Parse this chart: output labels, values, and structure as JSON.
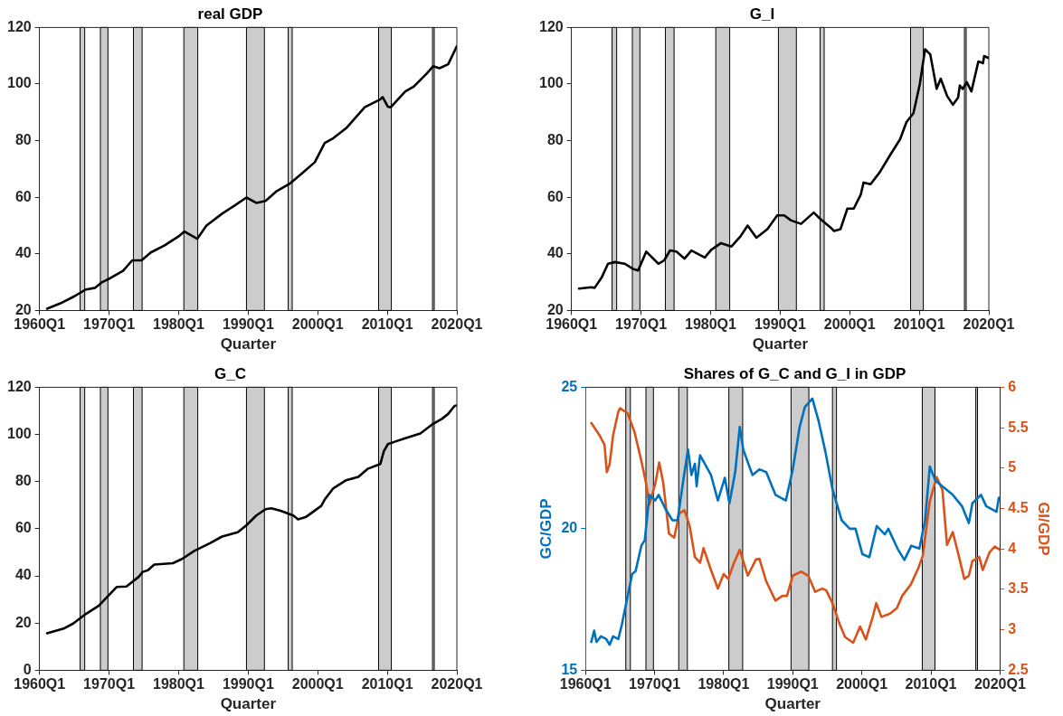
{
  "chart_data": [
    {
      "type": "line",
      "title": "real GDP",
      "xlabel": "Quarter",
      "xlim": [
        "1960-01",
        "2020-01"
      ],
      "xticks": [
        {
          "value": "1960-01",
          "label": "1960Q1"
        },
        {
          "value": "1970-01",
          "label": "1970Q1"
        },
        {
          "value": "1980-01",
          "label": "1980Q1"
        },
        {
          "value": "1990-01",
          "label": "1990Q1"
        },
        {
          "value": "2000-01",
          "label": "2000Q1"
        },
        {
          "value": "2010-01",
          "label": "2010Q1"
        },
        {
          "value": "2020-01",
          "label": "2020Q1"
        }
      ],
      "ylim": [
        20,
        120
      ],
      "yticks": [
        20,
        40,
        60,
        80,
        100,
        120
      ],
      "bands": [
        {
          "axis": "x",
          "from": "1965-11",
          "to": "1966-07",
          "color": "#cccccc"
        },
        {
          "axis": "x",
          "from": "1968-10",
          "to": "1969-11",
          "color": "#cccccc"
        },
        {
          "axis": "x",
          "from": "1973-07",
          "to": "1974-10",
          "color": "#cccccc"
        },
        {
          "axis": "x",
          "from": "1980-10",
          "to": "1982-10",
          "color": "#cccccc"
        },
        {
          "axis": "x",
          "from": "1989-10",
          "to": "1992-05",
          "color": "#cccccc"
        },
        {
          "axis": "x",
          "from": "1995-10",
          "to": "1996-05",
          "color": "#cccccc"
        },
        {
          "axis": "x",
          "from": "2008-10",
          "to": "2010-08",
          "color": "#cccccc"
        },
        {
          "axis": "x",
          "from": "2016-07",
          "to": "2016-10",
          "color": "#cccccc"
        }
      ],
      "series": [
        {
          "color": "#000000",
          "x": [
            "1961-02",
            "1963-01",
            "1965-01",
            "1966-09",
            "1968-01",
            "1969-01",
            "1970-03",
            "1972-01",
            "1973-05",
            "1974-09",
            "1976-01",
            "1978-01",
            "1980-01",
            "1980-11",
            "1982-09",
            "1984-01",
            "1986-04",
            "1988-01",
            "1989-10",
            "1991-03",
            "1992-07",
            "1994-01",
            "1996-02",
            "1998-01",
            "1999-08",
            "2001-01",
            "2002-04",
            "2004-02",
            "2006-10",
            "2009-01",
            "2009-05",
            "2010-02",
            "2010-07",
            "2012-08",
            "2013-11",
            "2015-09",
            "2016-08",
            "2017-07",
            "2018-10",
            "2020-01"
          ],
          "values": [
            20.6,
            22.5,
            25,
            27.4,
            28,
            30,
            31.4,
            34,
            37.7,
            37.7,
            40.5,
            43,
            46.2,
            47.9,
            45.3,
            50,
            54.2,
            57,
            59.9,
            58,
            58.7,
            62,
            65,
            69,
            72.4,
            79.2,
            80.9,
            84.4,
            91.8,
            94.6,
            95.4,
            92,
            91.8,
            97.4,
            99.2,
            103.7,
            106.3,
            105.6,
            107,
            113.4
          ]
        }
      ]
    },
    {
      "type": "line",
      "title": "G_I",
      "xlabel": "Quarter",
      "xlim": [
        "1960-01",
        "2020-01"
      ],
      "xticks": [
        {
          "value": "1960-01",
          "label": "1960Q1"
        },
        {
          "value": "1970-01",
          "label": "1970Q1"
        },
        {
          "value": "1980-01",
          "label": "1980Q1"
        },
        {
          "value": "1990-01",
          "label": "1990Q1"
        },
        {
          "value": "2000-01",
          "label": "2000Q1"
        },
        {
          "value": "2010-01",
          "label": "2010Q1"
        },
        {
          "value": "2020-01",
          "label": "2020Q1"
        }
      ],
      "ylim": [
        20,
        120
      ],
      "yticks": [
        20,
        40,
        60,
        80,
        100,
        120
      ],
      "bands": [
        {
          "axis": "x",
          "from": "1965-11",
          "to": "1966-07",
          "color": "#cccccc"
        },
        {
          "axis": "x",
          "from": "1968-10",
          "to": "1969-11",
          "color": "#cccccc"
        },
        {
          "axis": "x",
          "from": "1973-07",
          "to": "1974-10",
          "color": "#cccccc"
        },
        {
          "axis": "x",
          "from": "1980-10",
          "to": "1982-10",
          "color": "#cccccc"
        },
        {
          "axis": "x",
          "from": "1989-10",
          "to": "1992-05",
          "color": "#cccccc"
        },
        {
          "axis": "x",
          "from": "1995-10",
          "to": "1996-05",
          "color": "#cccccc"
        },
        {
          "axis": "x",
          "from": "2008-10",
          "to": "2010-08",
          "color": "#cccccc"
        },
        {
          "axis": "x",
          "from": "2016-07",
          "to": "2016-10",
          "color": "#cccccc"
        }
      ],
      "series": [
        {
          "color": "#000000",
          "x": [
            "1961-02",
            "1962-11",
            "1963-05",
            "1964-05",
            "1965-04",
            "1966-04",
            "1967-09",
            "1968-11",
            "1969-08",
            "1970-10",
            "1972-07",
            "1973-05",
            "1974-03",
            "1975-02",
            "1976-04",
            "1977-04",
            "1979-03",
            "1980-02",
            "1981-07",
            "1983-01",
            "1984-05",
            "1985-05",
            "1986-08",
            "1988-03",
            "1989-08",
            "1990-08",
            "1991-08",
            "1993-01",
            "1994-11",
            "1995-10",
            "1997-04",
            "1997-10",
            "1998-09",
            "1999-09",
            "2000-08",
            "2001-08",
            "2002-01",
            "2003-01",
            "2004-05",
            "2005-11",
            "2007-04",
            "2008-03",
            "2009-03",
            "2010-02",
            "2010-11",
            "2011-08",
            "2012-07",
            "2013-02",
            "2014-01",
            "2014-11",
            "2015-08",
            "2015-11",
            "2016-04",
            "2016-11",
            "2017-07",
            "2018-07",
            "2019-03",
            "2019-05",
            "2020-01"
          ],
          "values": [
            27.7,
            28.2,
            28,
            31.6,
            36.5,
            37.1,
            36.5,
            34.7,
            34.1,
            40.8,
            36.5,
            37.7,
            41.2,
            40.8,
            38.3,
            41.2,
            38.7,
            41.4,
            43.8,
            42.6,
            46.3,
            50,
            45.7,
            48.7,
            53.6,
            53.6,
            51.8,
            50.6,
            54.6,
            52.4,
            49.3,
            48.1,
            48.7,
            56,
            56,
            60.9,
            65.2,
            64.6,
            68.9,
            75,
            80.5,
            86.6,
            89.7,
            100.1,
            112.3,
            110.5,
            98.3,
            101.9,
            95.8,
            92.7,
            95.2,
            99.5,
            98.3,
            100.7,
            97.4,
            108,
            107.4,
            109.9,
            109.2
          ]
        }
      ]
    },
    {
      "type": "line",
      "title": "G_C",
      "xlabel": "Quarter",
      "xlim": [
        "1960-01",
        "2020-01"
      ],
      "xticks": [
        {
          "value": "1960-01",
          "label": "1960Q1"
        },
        {
          "value": "1970-01",
          "label": "1970Q1"
        },
        {
          "value": "1980-01",
          "label": "1980Q1"
        },
        {
          "value": "1990-01",
          "label": "1990Q1"
        },
        {
          "value": "2000-01",
          "label": "2000Q1"
        },
        {
          "value": "2010-01",
          "label": "2010Q1"
        },
        {
          "value": "2020-01",
          "label": "2020Q1"
        }
      ],
      "ylim": [
        0,
        120
      ],
      "yticks": [
        0,
        20,
        40,
        60,
        80,
        100,
        120
      ],
      "bands": [
        {
          "axis": "x",
          "from": "1965-11",
          "to": "1966-07",
          "color": "#cccccc"
        },
        {
          "axis": "x",
          "from": "1968-10",
          "to": "1969-11",
          "color": "#cccccc"
        },
        {
          "axis": "x",
          "from": "1973-07",
          "to": "1974-10",
          "color": "#cccccc"
        },
        {
          "axis": "x",
          "from": "1980-10",
          "to": "1982-10",
          "color": "#cccccc"
        },
        {
          "axis": "x",
          "from": "1989-10",
          "to": "1992-05",
          "color": "#cccccc"
        },
        {
          "axis": "x",
          "from": "1995-10",
          "to": "1996-05",
          "color": "#cccccc"
        },
        {
          "axis": "x",
          "from": "2008-10",
          "to": "2010-08",
          "color": "#cccccc"
        },
        {
          "axis": "x",
          "from": "2016-07",
          "to": "2016-10",
          "color": "#cccccc"
        }
      ],
      "series": [
        {
          "color": "#000000",
          "x": [
            "1961-02",
            "1963-08",
            "1964-11",
            "1966-09",
            "1968-07",
            "1969-10",
            "1971-02",
            "1972-07",
            "1974-04",
            "1974-11",
            "1975-08",
            "1976-07",
            "1979-03",
            "1980-07",
            "1982-04",
            "1984-07",
            "1986-04",
            "1988-07",
            "1989-10",
            "1991-03",
            "1992-07",
            "1993-05",
            "1994-09",
            "1996-07",
            "1997-03",
            "1998-04",
            "2000-07",
            "2001-01",
            "2002-04",
            "2004-02",
            "2005-11",
            "2007-03",
            "2009-01",
            "2009-07",
            "2010-02",
            "2011-03",
            "2012-08",
            "2014-10",
            "2016-08",
            "2017-11",
            "2018-10",
            "2019-09",
            "2020-01"
          ],
          "values": [
            15.7,
            17.8,
            19.8,
            23.9,
            27.3,
            31.2,
            35.3,
            35.5,
            39.6,
            41.7,
            42.4,
            44.8,
            45.4,
            47.2,
            50.6,
            53.9,
            56.7,
            58.5,
            61.5,
            65.6,
            68.3,
            68.7,
            67.6,
            65.6,
            64,
            64.9,
            69.7,
            72.4,
            77.2,
            80.6,
            82,
            85.4,
            87.5,
            92.9,
            95.9,
            97,
            98.4,
            100.4,
            104.5,
            106.6,
            108.7,
            112.1,
            112.3
          ]
        }
      ]
    },
    {
      "type": "line",
      "title": "Shares of G_C and G_I in GDP",
      "xlabel": "Quarter",
      "ylabel": "GC/GDP",
      "y2label": "GI/GDP",
      "xlim": [
        "1960-01",
        "2020-01"
      ],
      "xticks": [
        {
          "value": "1960-01",
          "label": "1960Q1"
        },
        {
          "value": "1970-01",
          "label": "1970Q1"
        },
        {
          "value": "1980-01",
          "label": "1980Q1"
        },
        {
          "value": "1990-01",
          "label": "1990Q1"
        },
        {
          "value": "2000-01",
          "label": "2000Q1"
        },
        {
          "value": "2010-01",
          "label": "2010Q1"
        },
        {
          "value": "2020-01",
          "label": "2020Q1"
        }
      ],
      "ylim": [
        15,
        25
      ],
      "yticks": [
        15,
        20,
        25
      ],
      "y2lim": [
        2.5,
        6
      ],
      "y2ticks": [
        2.5,
        3,
        3.5,
        4,
        4.5,
        5,
        5.5,
        6
      ],
      "bands": [
        {
          "axis": "x",
          "from": "1965-11",
          "to": "1966-07",
          "color": "#cccccc"
        },
        {
          "axis": "x",
          "from": "1968-10",
          "to": "1969-11",
          "color": "#cccccc"
        },
        {
          "axis": "x",
          "from": "1973-07",
          "to": "1974-10",
          "color": "#cccccc"
        },
        {
          "axis": "x",
          "from": "1980-10",
          "to": "1982-10",
          "color": "#cccccc"
        },
        {
          "axis": "x",
          "from": "1989-10",
          "to": "1992-05",
          "color": "#cccccc"
        },
        {
          "axis": "x",
          "from": "1995-10",
          "to": "1996-05",
          "color": "#cccccc"
        },
        {
          "axis": "x",
          "from": "2008-10",
          "to": "2010-08",
          "color": "#cccccc"
        },
        {
          "axis": "x",
          "from": "2016-07",
          "to": "2016-10",
          "color": "#cccccc"
        }
      ],
      "series": [
        {
          "color": "#0072bd",
          "x": [
            "1960-11",
            "1961-04",
            "1961-08",
            "1962-04",
            "1963-01",
            "1963-07",
            "1964-01",
            "1964-10",
            "1965-04",
            "1966-02",
            "1966-10",
            "1967-04",
            "1968-02",
            "1968-08",
            "1969-04",
            "1970-02",
            "1970-08",
            "1971-08",
            "1972-08",
            "1973-05",
            "1974-02",
            "1974-11",
            "1975-05",
            "1975-11",
            "1976-02",
            "1976-08",
            "1978-03",
            "1979-03",
            "1980-03",
            "1980-11",
            "1981-09",
            "1982-05",
            "1982-11",
            "1984-03",
            "1985-03",
            "1986-03",
            "1987-07",
            "1989-01",
            "1990-01",
            "1991-01",
            "1991-10",
            "1992-11",
            "1993-10",
            "1994-10",
            "1995-10",
            "1997-02",
            "1998-04",
            "1999-02",
            "2000-02",
            "2001-02",
            "2002-03",
            "2003-05",
            "2003-11",
            "2005-03",
            "2006-03",
            "2007-03",
            "2008-05",
            "2009-03",
            "2009-11",
            "2010-09",
            "2011-09",
            "2013-03",
            "2014-07",
            "2015-07",
            "2016-01",
            "2017-04",
            "2018-01",
            "2019-07",
            "2019-11"
          ],
          "values": [
            16,
            16.4,
            16,
            16.2,
            16.1,
            15.9,
            16.2,
            16.1,
            16.6,
            17.6,
            18.4,
            18.5,
            19.4,
            19.6,
            21.2,
            21,
            21.2,
            20.7,
            20.3,
            20.3,
            21.6,
            22.8,
            21.9,
            22.3,
            21.5,
            22.6,
            21.9,
            21,
            21.8,
            20.9,
            22,
            23.6,
            22.8,
            21.9,
            22.1,
            22,
            21.2,
            21,
            22.1,
            23.6,
            24.3,
            24.6,
            23.8,
            22.7,
            21.4,
            20.3,
            20,
            20,
            19.1,
            19,
            20.1,
            19.8,
            20,
            19.3,
            18.9,
            19.4,
            19.3,
            20.3,
            22.2,
            21.7,
            21.5,
            21.2,
            20.8,
            20.2,
            20.9,
            21.2,
            20.8,
            20.6,
            21.1
          ]
        },
        {
          "color": "#d95319",
          "axis": "y2",
          "x": [
            "1960-11",
            "1962-01",
            "1962-10",
            "1963-02",
            "1963-07",
            "1964-01",
            "1964-10",
            "1965-01",
            "1966-02",
            "1967-02",
            "1968-02",
            "1968-10",
            "1969-04",
            "1970-02",
            "1970-09",
            "1971-04",
            "1972-02",
            "1972-11",
            "1973-08",
            "1974-05",
            "1975-02",
            "1975-11",
            "1976-08",
            "1977-02",
            "1978-03",
            "1979-03",
            "1980-01",
            "1980-09",
            "1981-07",
            "1982-05",
            "1983-07",
            "1984-09",
            "1985-03",
            "1986-03",
            "1987-07",
            "1988-07",
            "1989-03",
            "1990-01",
            "1991-04",
            "1992-04",
            "1993-04",
            "1994-04",
            "1994-11",
            "1995-10",
            "1996-11",
            "1997-08",
            "1998-10",
            "1999-10",
            "2000-08",
            "2001-08",
            "2002-02",
            "2002-11",
            "2004-02",
            "2005-02",
            "2005-11",
            "2007-02",
            "2008-03",
            "2008-11",
            "2009-11",
            "2010-11",
            "2011-09",
            "2012-05",
            "2013-03",
            "2014-03",
            "2014-11",
            "2015-07",
            "2016-01",
            "2017-01",
            "2017-07",
            "2018-07",
            "2019-04",
            "2020-01"
          ],
          "values": [
            5.56,
            5.41,
            5.29,
            4.95,
            5.05,
            5.41,
            5.7,
            5.74,
            5.68,
            5.45,
            5.09,
            4.82,
            4.55,
            4.8,
            5.07,
            4.82,
            4.19,
            4.14,
            4.44,
            4.48,
            4.28,
            3.9,
            3.83,
            4.01,
            3.74,
            3.51,
            3.69,
            3.63,
            3.83,
            3.99,
            3.67,
            3.87,
            3.88,
            3.6,
            3.36,
            3.42,
            3.42,
            3.67,
            3.72,
            3.67,
            3.47,
            3.51,
            3.49,
            3.33,
            3.06,
            2.91,
            2.84,
            3.04,
            2.88,
            3.16,
            3.33,
            3.16,
            3.2,
            3.27,
            3.42,
            3.56,
            3.76,
            3.92,
            4.59,
            4.89,
            4.73,
            4.05,
            4.21,
            3.87,
            3.63,
            3.67,
            3.85,
            3.9,
            3.74,
            3.96,
            4.03,
            3.99
          ]
        }
      ]
    }
  ]
}
